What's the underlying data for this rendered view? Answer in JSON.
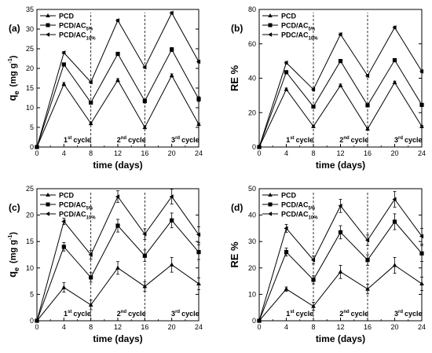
{
  "x_ticks": [
    "0",
    "4",
    "8",
    "12",
    "16",
    "20",
    "24"
  ],
  "cycle_labels": [
    {
      "num": "1",
      "sup": "st",
      "rest": "cycle"
    },
    {
      "num": "2",
      "sup": "nd",
      "rest": "cycle"
    },
    {
      "num": "3",
      "sup": "rd",
      "rest": "cycle"
    }
  ],
  "chart_data": [
    {
      "panel": "(a)",
      "type": "line",
      "xlabel": "time (days)",
      "ylabel": {
        "main": "q",
        "sub": "e",
        "unit": "(mg g",
        "unit_sup": "-1",
        "unit_end": ")"
      },
      "xlim": [
        0,
        24
      ],
      "ylim": [
        0,
        35
      ],
      "yticks": [
        0,
        5,
        10,
        15,
        20,
        25,
        30,
        35
      ],
      "x": [
        0,
        4,
        8,
        12,
        16,
        20,
        24
      ],
      "legend_pos": "top-left",
      "series": [
        {
          "name": "PCD",
          "sub": "",
          "marker": "triangle-up",
          "values": [
            0,
            16,
            6,
            17,
            5,
            18.2,
            5.8
          ],
          "err": [
            0,
            0.4,
            0.3,
            0.4,
            0.3,
            0.4,
            0.3
          ]
        },
        {
          "name": "PCD/AC",
          "sub": "5%",
          "marker": "square",
          "values": [
            0,
            21,
            11.3,
            23.7,
            11.7,
            24.8,
            12.2
          ],
          "err": [
            0,
            0.4,
            0.4,
            0.4,
            0.5,
            0.5,
            0.6
          ]
        },
        {
          "name": "PCD/AC",
          "sub": "10%",
          "marker": "triangle-left",
          "values": [
            0,
            24,
            16.5,
            32.2,
            20.3,
            34.1,
            21.7
          ],
          "err": [
            0,
            0.3,
            0.3,
            0.3,
            0.3,
            0.3,
            0.3
          ]
        }
      ]
    },
    {
      "panel": "(b)",
      "type": "line",
      "xlabel": "time (days)",
      "ylabel": {
        "main": "RE %",
        "sub": "",
        "unit": "",
        "unit_sup": "",
        "unit_end": ""
      },
      "xlim": [
        0,
        24
      ],
      "ylim": [
        0,
        80
      ],
      "yticks": [
        0,
        20,
        40,
        60,
        80
      ],
      "x": [
        0,
        4,
        8,
        12,
        16,
        20,
        24
      ],
      "legend_pos": "top-left",
      "series": [
        {
          "name": "PCD",
          "sub": "",
          "marker": "triangle-up",
          "values": [
            0,
            33.5,
            12,
            35.8,
            10.5,
            37.5,
            12
          ],
          "err": [
            0,
            0.8,
            0.6,
            0.8,
            0.6,
            0.8,
            0.6
          ]
        },
        {
          "name": "PCD/AC",
          "sub": "5%",
          "marker": "square",
          "values": [
            0,
            43.5,
            23.5,
            50,
            24.3,
            50.5,
            24.5
          ],
          "err": [
            0,
            0.8,
            0.8,
            0.8,
            0.8,
            0.8,
            0.8
          ]
        },
        {
          "name": "PDC/AC",
          "sub": "10%",
          "marker": "triangle-left",
          "values": [
            0,
            49,
            33.5,
            65.5,
            41.5,
            69.5,
            44
          ],
          "err": [
            0,
            0.8,
            0.8,
            0.8,
            0.8,
            0.8,
            0.8
          ]
        }
      ]
    },
    {
      "panel": "(c)",
      "type": "line",
      "xlabel": "time (days)",
      "ylabel": {
        "main": "q",
        "sub": "e",
        "unit": "(mg g",
        "unit_sup": "-1",
        "unit_end": ")"
      },
      "xlim": [
        0,
        24
      ],
      "ylim": [
        0,
        25
      ],
      "yticks": [
        0,
        5,
        10,
        15,
        20,
        25
      ],
      "x": [
        0,
        4,
        8,
        12,
        16,
        20,
        24
      ],
      "legend_pos": "top-left",
      "series": [
        {
          "name": "PCD",
          "sub": "",
          "marker": "triangle-up",
          "values": [
            0,
            6.3,
            3,
            10,
            6.5,
            10.6,
            7
          ],
          "err": [
            0,
            0.9,
            0.9,
            1.2,
            0.9,
            1.4,
            1.1
          ]
        },
        {
          "name": "PCD/AC",
          "sub": "5%",
          "marker": "square",
          "values": [
            0,
            14,
            8.2,
            18,
            12.3,
            19,
            13
          ],
          "err": [
            0,
            0.8,
            0.9,
            1.2,
            1.1,
            1.4,
            1.4
          ]
        },
        {
          "name": "PCD/AC",
          "sub": "10%",
          "marker": "triangle-left",
          "values": [
            0,
            18.8,
            12.5,
            23.5,
            16.4,
            23.5,
            16.3
          ],
          "err": [
            0,
            0.6,
            0.8,
            1.1,
            1,
            1.4,
            1.5
          ]
        }
      ]
    },
    {
      "panel": "(d)",
      "type": "line",
      "xlabel": "time (days)",
      "ylabel": {
        "main": "RE %",
        "sub": "",
        "unit": "",
        "unit_sup": "",
        "unit_end": ""
      },
      "xlim": [
        0,
        24
      ],
      "ylim": [
        0,
        50
      ],
      "yticks": [
        0,
        10,
        20,
        30,
        40,
        50
      ],
      "x": [
        0,
        4,
        8,
        12,
        16,
        20,
        24
      ],
      "legend_pos": "top-left",
      "series": [
        {
          "name": "PCD",
          "sub": "",
          "marker": "triangle-up",
          "values": [
            0,
            12,
            5.5,
            18.5,
            12,
            21,
            14
          ],
          "err": [
            0,
            0.8,
            1.5,
            2.5,
            1.8,
            3,
            2.5
          ]
        },
        {
          "name": "PCD/AC",
          "sub": "5%",
          "marker": "square",
          "values": [
            0,
            26,
            15.5,
            33.5,
            23,
            37.5,
            25.5
          ],
          "err": [
            0,
            1.5,
            1.5,
            2.5,
            2,
            3,
            3
          ]
        },
        {
          "name": "PCD/AC",
          "sub": "10%",
          "marker": "triangle-left",
          "values": [
            0,
            35,
            23,
            43.5,
            30.5,
            46,
            32
          ],
          "err": [
            0,
            1.5,
            1.5,
            2.5,
            2,
            3,
            3
          ]
        }
      ]
    }
  ]
}
